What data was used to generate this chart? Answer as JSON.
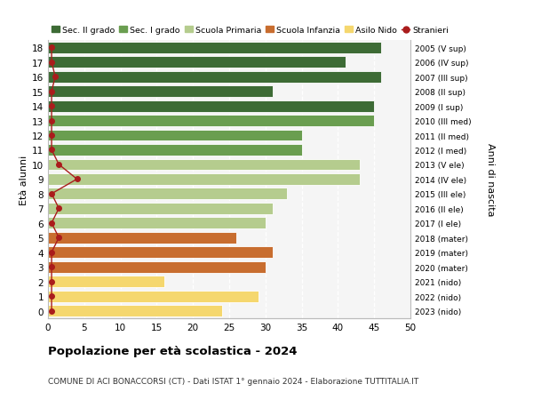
{
  "ages": [
    0,
    1,
    2,
    3,
    4,
    5,
    6,
    7,
    8,
    9,
    10,
    11,
    12,
    13,
    14,
    15,
    16,
    17,
    18
  ],
  "values": [
    24,
    29,
    16,
    30,
    31,
    26,
    30,
    31,
    33,
    43,
    43,
    35,
    35,
    45,
    45,
    31,
    46,
    41,
    46
  ],
  "stranieri": [
    0.5,
    0.5,
    0.5,
    0.5,
    0.5,
    1.5,
    0.5,
    1.5,
    0.5,
    4,
    1.5,
    0.5,
    0.5,
    0.5,
    0.5,
    0.5,
    1.0,
    0.5,
    0.5
  ],
  "right_labels": [
    "2023 (nido)",
    "2022 (nido)",
    "2021 (nido)",
    "2020 (mater)",
    "2019 (mater)",
    "2018 (mater)",
    "2017 (I ele)",
    "2016 (II ele)",
    "2015 (III ele)",
    "2014 (IV ele)",
    "2013 (V ele)",
    "2012 (I med)",
    "2011 (II med)",
    "2010 (III med)",
    "2009 (I sup)",
    "2008 (II sup)",
    "2007 (III sup)",
    "2006 (IV sup)",
    "2005 (V sup)"
  ],
  "colors": {
    "sec2": "#3d6b35",
    "sec1": "#6a9e50",
    "primaria": "#b5cc8e",
    "infanzia": "#c86d2f",
    "nido": "#f5d76e",
    "stranieri": "#aa1c1c"
  },
  "bar_colors": [
    "#f5d76e",
    "#f5d76e",
    "#f5d76e",
    "#c86d2f",
    "#c86d2f",
    "#c86d2f",
    "#b5cc8e",
    "#b5cc8e",
    "#b5cc8e",
    "#b5cc8e",
    "#b5cc8e",
    "#6a9e50",
    "#6a9e50",
    "#6a9e50",
    "#3d6b35",
    "#3d6b35",
    "#3d6b35",
    "#3d6b35",
    "#3d6b35"
  ],
  "title": "Popolazione per età scolastica - 2024",
  "subtitle": "COMUNE DI ACI BONACCORSI (CT) - Dati ISTAT 1° gennaio 2024 - Elaborazione TUTTITALIA.IT",
  "ylabel": "Età alunni",
  "right_axis_label": "Anni di nascita",
  "xlim": [
    0,
    50
  ],
  "xticks": [
    0,
    5,
    10,
    15,
    20,
    25,
    30,
    35,
    40,
    45,
    50
  ],
  "legend": {
    "sec2_label": "Sec. II grado",
    "sec1_label": "Sec. I grado",
    "primaria_label": "Scuola Primaria",
    "infanzia_label": "Scuola Infanzia",
    "nido_label": "Asilo Nido",
    "stranieri_label": "Stranieri"
  },
  "background": "#ffffff",
  "plot_bg": "#f5f5f5"
}
